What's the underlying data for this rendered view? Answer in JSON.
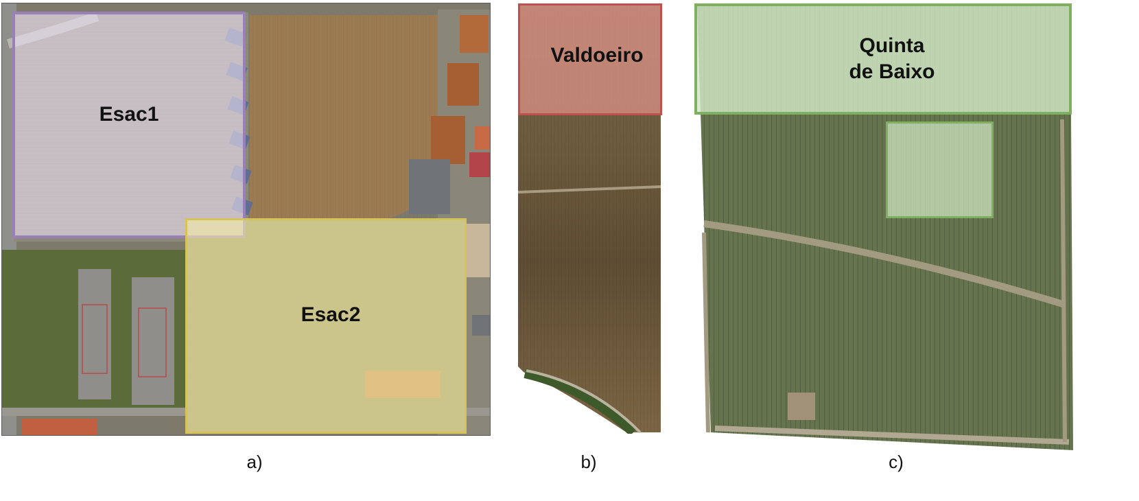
{
  "panels": [
    {
      "caption": "a)",
      "regions": [
        {
          "label": "Esac1",
          "color": "#9b7fb8"
        },
        {
          "label": "Esac2",
          "color": "#d8c25a"
        }
      ]
    },
    {
      "caption": "b)",
      "regions": [
        {
          "label": "Valdoeiro",
          "color": "#c0504d"
        }
      ]
    },
    {
      "caption": "c)",
      "regions": [
        {
          "label": "Quinta\nde Baixo",
          "color": "#7fb062"
        }
      ]
    }
  ]
}
